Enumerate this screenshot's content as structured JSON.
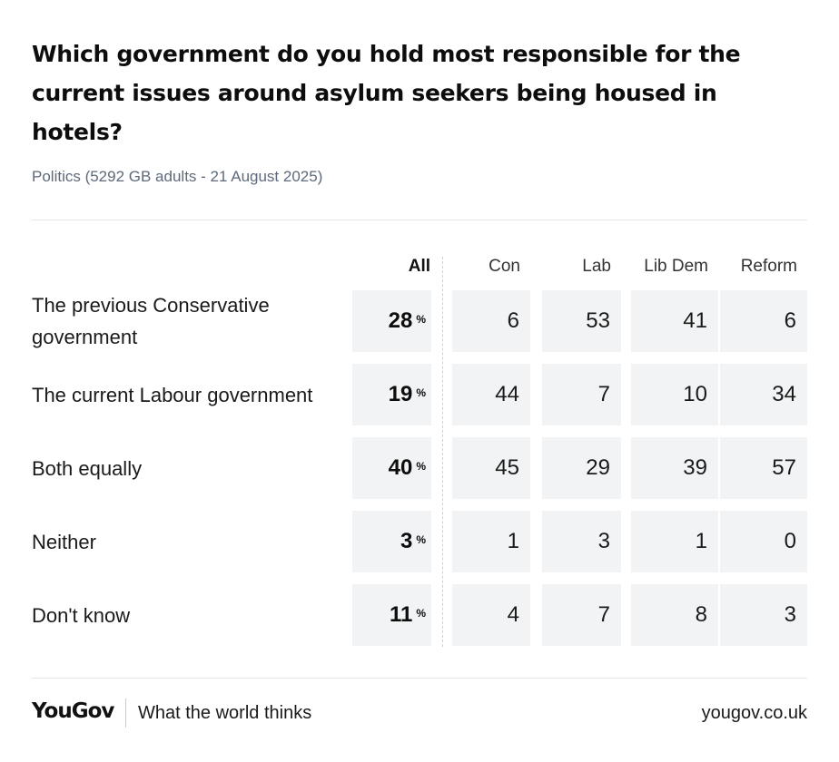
{
  "chart_data": {
    "type": "table",
    "title": "Which government do you hold most responsible for the current issues around asylum seekers being housed in hotels?",
    "subtitle": "Politics (5292 GB adults - 21 August 2025)",
    "columns": [
      "All",
      "Con",
      "Lab",
      "Lib Dem",
      "Reform"
    ],
    "all_suffix": "%",
    "rows": [
      {
        "label": "The previous Conservative government",
        "values": [
          "28",
          "6",
          "53",
          "41",
          "6"
        ]
      },
      {
        "label": "The current Labour government",
        "values": [
          "19",
          "44",
          "7",
          "10",
          "34"
        ]
      },
      {
        "label": "Both equally",
        "values": [
          "40",
          "45",
          "29",
          "39",
          "57"
        ]
      },
      {
        "label": "Neither",
        "values": [
          "3",
          "1",
          "3",
          "1",
          "0"
        ]
      },
      {
        "label": "Don't know",
        "values": [
          "11",
          "4",
          "7",
          "8",
          "3"
        ]
      }
    ]
  },
  "footer": {
    "logo": "YouGov",
    "tagline": "What the world thinks",
    "url": "yougov.co.uk"
  },
  "colors": {
    "cell_background": "#f2f3f4",
    "subtitle": "#5e6a7a",
    "text": "#111111"
  }
}
